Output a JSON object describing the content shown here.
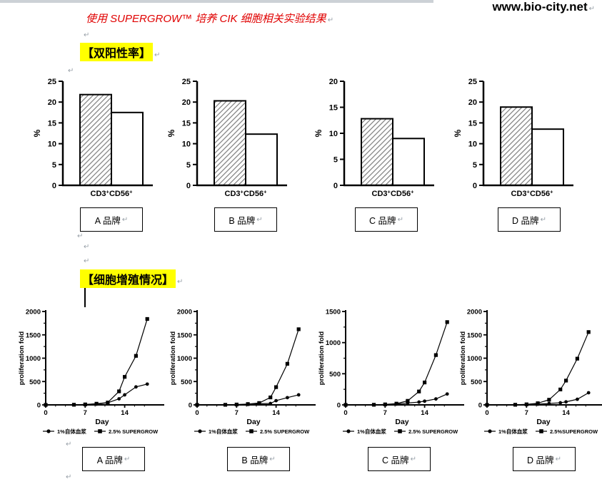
{
  "ui": {
    "pilcrow": "↵"
  },
  "header": {
    "watermark": "www.bio-city.net",
    "title": "使用 SUPERGROW™ 培养 CIK 细胞相关实验结果"
  },
  "sections": [
    {
      "title": "【双阳性率】"
    },
    {
      "title": "【细胞增殖情况】"
    }
  ],
  "brands": [
    "A 品牌",
    "B 品牌",
    "C 品牌",
    "D 品牌"
  ],
  "colors": {
    "highlight": "#ffff00",
    "title_red": "#e00000",
    "ink": "#000000",
    "pilcrow_gray": "#98a0a8"
  },
  "chart_data": [
    {
      "type": "bar",
      "brand": "A 品牌",
      "ylabel": "%",
      "ylim": [
        0,
        25
      ],
      "ytick_step": 5,
      "categories": [
        "CD3+CD56+"
      ],
      "series": [
        {
          "name": "hatched-bar",
          "values": [
            21.8
          ]
        },
        {
          "name": "open-bar",
          "values": [
            17.5
          ]
        }
      ]
    },
    {
      "type": "bar",
      "brand": "B 品牌",
      "ylabel": "%",
      "ylim": [
        0,
        25
      ],
      "ytick_step": 5,
      "categories": [
        "CD3+CD56+"
      ],
      "series": [
        {
          "name": "hatched-bar",
          "values": [
            20.3
          ]
        },
        {
          "name": "open-bar",
          "values": [
            12.3
          ]
        }
      ]
    },
    {
      "type": "bar",
      "brand": "C 品牌",
      "ylabel": "%",
      "ylim": [
        0,
        20
      ],
      "ytick_step": 5,
      "categories": [
        "CD3+CD56+"
      ],
      "series": [
        {
          "name": "hatched-bar",
          "values": [
            12.8
          ]
        },
        {
          "name": "open-bar",
          "values": [
            9.0
          ]
        }
      ]
    },
    {
      "type": "bar",
      "brand": "D 品牌",
      "ylabel": "%",
      "ylim": [
        0,
        25
      ],
      "ytick_step": 5,
      "categories": [
        "CD3+CD56+"
      ],
      "series": [
        {
          "name": "hatched-bar",
          "values": [
            18.8
          ]
        },
        {
          "name": "open-bar",
          "values": [
            13.5
          ]
        }
      ]
    },
    {
      "type": "line",
      "brand": "A 品牌",
      "xlabel": "Day",
      "ylabel": "proliferation fold",
      "ylim": [
        0,
        2000
      ],
      "ytick_step": 500,
      "xlim": [
        0,
        20
      ],
      "xticks": [
        0,
        7,
        14
      ],
      "x": [
        0,
        5,
        7,
        9,
        11,
        13,
        14,
        16,
        18
      ],
      "series": [
        {
          "name": "1%自体血浆",
          "marker": "circle",
          "values": [
            0,
            2,
            5,
            15,
            45,
            130,
            215,
            385,
            445
          ]
        },
        {
          "name": "2.5% SUPERGROW",
          "marker": "square",
          "values": [
            0,
            3,
            10,
            25,
            50,
            290,
            600,
            1050,
            1840
          ]
        }
      ]
    },
    {
      "type": "line",
      "brand": "B 品牌",
      "xlabel": "Day",
      "ylabel": "proliferation fold",
      "ylim": [
        0,
        2000
      ],
      "ytick_step": 500,
      "xlim": [
        0,
        20
      ],
      "xticks": [
        0,
        7,
        14
      ],
      "x": [
        0,
        5,
        7,
        9,
        11,
        13,
        14,
        16,
        18
      ],
      "series": [
        {
          "name": "1%自体血浆",
          "marker": "circle",
          "values": [
            0,
            1,
            4,
            10,
            25,
            30,
            90,
            155,
            215
          ]
        },
        {
          "name": "2.5% SUPERGROW",
          "marker": "square",
          "values": [
            0,
            2,
            8,
            18,
            40,
            160,
            380,
            880,
            1620
          ]
        }
      ]
    },
    {
      "type": "line",
      "brand": "C 品牌",
      "xlabel": "Day",
      "ylabel": "proliferation fold",
      "ylim": [
        0,
        1500
      ],
      "ytick_step": 500,
      "xlim": [
        0,
        20
      ],
      "xticks": [
        0,
        7,
        14
      ],
      "x": [
        0,
        5,
        7,
        9,
        11,
        13,
        14,
        16,
        18
      ],
      "series": [
        {
          "name": "1%自体血浆",
          "marker": "circle",
          "values": [
            0,
            1,
            4,
            12,
            30,
            45,
            60,
            95,
            175
          ]
        },
        {
          "name": "2.5% SUPERGROW",
          "marker": "square",
          "values": [
            0,
            2,
            8,
            20,
            65,
            215,
            360,
            800,
            1330
          ]
        }
      ]
    },
    {
      "type": "line",
      "brand": "D 品牌",
      "xlabel": "Day",
      "ylabel": "proliferation fold",
      "ylim": [
        0,
        2000
      ],
      "ytick_step": 500,
      "xlim": [
        0,
        20
      ],
      "xticks": [
        0,
        7,
        14
      ],
      "x": [
        0,
        5,
        7,
        9,
        11,
        13,
        14,
        16,
        18
      ],
      "series": [
        {
          "name": "1%自体血浆",
          "marker": "circle",
          "values": [
            0,
            1,
            5,
            15,
            30,
            45,
            65,
            120,
            260
          ]
        },
        {
          "name": "2.5%SUPERGROW",
          "marker": "square",
          "values": [
            0,
            3,
            12,
            35,
            110,
            330,
            520,
            990,
            1560
          ]
        }
      ]
    }
  ]
}
